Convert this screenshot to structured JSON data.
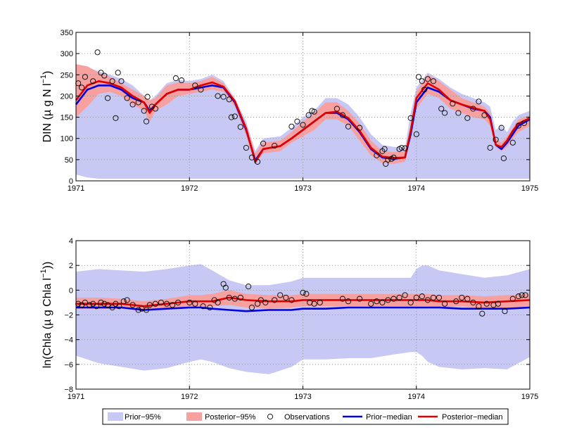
{
  "colors": {
    "prior_band": "#c8c8f5",
    "posterior_band": "#f6a0a0",
    "prior_median": "#0000e0",
    "posterior_median": "#e00000",
    "grid": "#888888"
  },
  "legend": [
    {
      "key": "prior95",
      "label": "Prior−95%"
    },
    {
      "key": "post95",
      "label": "Posterior−95%"
    },
    {
      "key": "obs",
      "label": "Observations"
    },
    {
      "key": "priormed",
      "label": "Prior−median"
    },
    {
      "key": "postmed",
      "label": "Posterior−median"
    }
  ],
  "chart_data": [
    {
      "type": "area",
      "id": "din",
      "ylabel_main": "DIN (µ g N l",
      "ylabel_sup": "−1",
      "ylabel_end": ")",
      "xlim": [
        1971,
        1975
      ],
      "ylim": [
        0,
        350
      ],
      "xticks": [
        1971,
        1972,
        1973,
        1974,
        1975
      ],
      "xtick_labels": [
        "1971",
        "1972",
        "1973",
        "1974",
        "1975"
      ],
      "yticks": [
        0,
        50,
        100,
        150,
        200,
        250,
        300,
        350
      ],
      "ytick_labels": [
        "0",
        "50",
        "100",
        "150",
        "200",
        "250",
        "300",
        "350"
      ],
      "t": [
        1971.0,
        1971.1,
        1971.2,
        1971.3,
        1971.4,
        1971.5,
        1971.6,
        1971.65,
        1971.7,
        1971.8,
        1971.9,
        1972.0,
        1972.1,
        1972.2,
        1972.3,
        1972.4,
        1972.5,
        1972.58,
        1972.65,
        1972.8,
        1972.9,
        1973.0,
        1973.1,
        1973.2,
        1973.3,
        1973.4,
        1973.5,
        1973.6,
        1973.7,
        1973.8,
        1973.9,
        1973.95,
        1974.0,
        1974.1,
        1974.2,
        1974.3,
        1974.4,
        1974.5,
        1974.6,
        1974.65,
        1974.7,
        1974.75,
        1974.8,
        1974.85,
        1974.9,
        1975.0
      ],
      "prior_low": [
        15,
        8,
        5,
        5,
        5,
        5,
        5,
        5,
        5,
        5,
        5,
        5,
        5,
        5,
        5,
        5,
        5,
        5,
        5,
        5,
        5,
        5,
        5,
        5,
        5,
        5,
        5,
        5,
        5,
        5,
        5,
        5,
        5,
        5,
        5,
        5,
        5,
        5,
        5,
        5,
        5,
        5,
        5,
        5,
        5,
        5
      ],
      "prior_high": [
        270,
        268,
        258,
        250,
        240,
        225,
        200,
        190,
        200,
        230,
        238,
        235,
        240,
        250,
        235,
        195,
        140,
        70,
        100,
        105,
        125,
        150,
        165,
        195,
        195,
        180,
        150,
        110,
        85,
        80,
        78,
        160,
        220,
        255,
        240,
        220,
        205,
        195,
        185,
        175,
        120,
        130,
        115,
        140,
        155,
        165
      ],
      "post_low": [
        150,
        175,
        205,
        210,
        200,
        180,
        165,
        140,
        165,
        180,
        200,
        205,
        210,
        215,
        210,
        175,
        105,
        40,
        65,
        70,
        90,
        105,
        120,
        145,
        145,
        130,
        95,
        60,
        42,
        40,
        45,
        110,
        170,
        205,
        195,
        170,
        160,
        150,
        145,
        130,
        80,
        70,
        80,
        100,
        115,
        130
      ],
      "post_high": [
        275,
        270,
        255,
        245,
        230,
        215,
        200,
        190,
        195,
        225,
        232,
        230,
        235,
        245,
        230,
        190,
        130,
        65,
        90,
        95,
        115,
        140,
        160,
        185,
        185,
        165,
        135,
        95,
        70,
        68,
        70,
        130,
        210,
        250,
        235,
        215,
        195,
        185,
        175,
        160,
        100,
        90,
        105,
        125,
        145,
        155
      ],
      "prior_median": [
        180,
        215,
        225,
        225,
        215,
        195,
        185,
        165,
        180,
        205,
        215,
        215,
        220,
        225,
        220,
        185,
        120,
        48,
        75,
        82,
        100,
        120,
        140,
        160,
        160,
        145,
        115,
        75,
        55,
        52,
        55,
        110,
        185,
        220,
        210,
        190,
        180,
        170,
        165,
        150,
        85,
        75,
        90,
        110,
        130,
        145
      ],
      "post_median": [
        190,
        225,
        235,
        230,
        220,
        200,
        185,
        160,
        180,
        205,
        215,
        215,
        225,
        232,
        222,
        188,
        123,
        44,
        75,
        82,
        100,
        120,
        140,
        160,
        163,
        148,
        118,
        78,
        57,
        54,
        55,
        118,
        195,
        230,
        215,
        190,
        180,
        172,
        165,
        145,
        85,
        80,
        95,
        118,
        135,
        148
      ],
      "observations": [
        [
          1971.02,
          230
        ],
        [
          1971.05,
          220
        ],
        [
          1971.08,
          245
        ],
        [
          1971.15,
          235
        ],
        [
          1971.19,
          303
        ],
        [
          1971.22,
          255
        ],
        [
          1971.25,
          248
        ],
        [
          1971.28,
          195
        ],
        [
          1971.32,
          235
        ],
        [
          1971.35,
          148
        ],
        [
          1971.37,
          255
        ],
        [
          1971.4,
          235
        ],
        [
          1971.45,
          195
        ],
        [
          1971.5,
          180
        ],
        [
          1971.55,
          185
        ],
        [
          1971.6,
          165
        ],
        [
          1971.62,
          140
        ],
        [
          1971.63,
          198
        ],
        [
          1971.67,
          175
        ],
        [
          1971.7,
          170
        ],
        [
          1971.88,
          242
        ],
        [
          1971.93,
          237
        ],
        [
          1972.05,
          225
        ],
        [
          1972.1,
          215
        ],
        [
          1972.25,
          200
        ],
        [
          1972.3,
          198
        ],
        [
          1972.35,
          192
        ],
        [
          1972.37,
          150
        ],
        [
          1972.4,
          152
        ],
        [
          1972.45,
          127
        ],
        [
          1972.5,
          78
        ],
        [
          1972.55,
          55
        ],
        [
          1972.6,
          45
        ],
        [
          1972.65,
          88
        ],
        [
          1972.75,
          83
        ],
        [
          1972.9,
          128
        ],
        [
          1972.95,
          140
        ],
        [
          1973.0,
          132
        ],
        [
          1973.05,
          155
        ],
        [
          1973.08,
          165
        ],
        [
          1973.1,
          163
        ],
        [
          1973.3,
          170
        ],
        [
          1973.35,
          155
        ],
        [
          1973.4,
          128
        ],
        [
          1973.5,
          125
        ],
        [
          1973.65,
          60
        ],
        [
          1973.7,
          70
        ],
        [
          1973.72,
          75
        ],
        [
          1973.73,
          40
        ],
        [
          1973.75,
          50
        ],
        [
          1973.78,
          52
        ],
        [
          1973.8,
          55
        ],
        [
          1973.85,
          75
        ],
        [
          1973.87,
          78
        ],
        [
          1973.9,
          77
        ],
        [
          1973.95,
          148
        ],
        [
          1974.0,
          110
        ],
        [
          1974.02,
          245
        ],
        [
          1974.05,
          235
        ],
        [
          1974.07,
          215
        ],
        [
          1974.1,
          240
        ],
        [
          1974.15,
          235
        ],
        [
          1974.22,
          170
        ],
        [
          1974.25,
          160
        ],
        [
          1974.32,
          182
        ],
        [
          1974.37,
          160
        ],
        [
          1974.45,
          148
        ],
        [
          1974.5,
          170
        ],
        [
          1974.55,
          187
        ],
        [
          1974.6,
          155
        ],
        [
          1974.65,
          78
        ],
        [
          1974.7,
          97
        ],
        [
          1974.75,
          125
        ],
        [
          1974.77,
          53
        ],
        [
          1974.85,
          90
        ],
        [
          1974.9,
          130
        ],
        [
          1974.95,
          136
        ]
      ]
    },
    {
      "type": "area",
      "id": "chla",
      "ylabel_main": "ln(Chla (µ g Chla l",
      "ylabel_sup": "−1",
      "ylabel_end": "))",
      "xlim": [
        1971,
        1975
      ],
      "ylim": [
        -8,
        4
      ],
      "xticks": [
        1971,
        1972,
        1973,
        1974,
        1975
      ],
      "xtick_labels": [
        "1971",
        "1972",
        "1973",
        "1974",
        "1975"
      ],
      "yticks": [
        -8,
        -6,
        -4,
        -2,
        0,
        2,
        4
      ],
      "ytick_labels": [
        "−8",
        "−6",
        "−4",
        "−2",
        "0",
        "2",
        "4"
      ],
      "t": [
        1971.0,
        1971.2,
        1971.4,
        1971.6,
        1971.8,
        1972.0,
        1972.1,
        1972.2,
        1972.35,
        1972.5,
        1972.7,
        1972.9,
        1973.0,
        1973.2,
        1973.4,
        1973.6,
        1973.8,
        1973.95,
        1974.0,
        1974.05,
        1974.1,
        1974.2,
        1974.4,
        1974.6,
        1974.8,
        1975.0
      ],
      "prior_low": [
        -5.3,
        -5.9,
        -6.2,
        -6.5,
        -6.3,
        -5.8,
        -5.6,
        -5.8,
        -6.3,
        -6.6,
        -6.8,
        -6.2,
        -5.6,
        -5.6,
        -5.5,
        -5.5,
        -5.2,
        -5.0,
        -5.0,
        -5.3,
        -5.8,
        -6.2,
        -6.4,
        -6.3,
        -6.4,
        -5.4
      ],
      "prior_high": [
        1.5,
        1.7,
        1.6,
        1.5,
        1.7,
        2.0,
        2.1,
        1.6,
        0.8,
        0.4,
        0.4,
        0.7,
        1.0,
        1.0,
        1.0,
        1.0,
        1.0,
        1.0,
        1.7,
        2.0,
        2.0,
        1.6,
        1.3,
        1.0,
        1.2,
        1.7
      ],
      "post_low": [
        -1.5,
        -1.5,
        -1.5,
        -1.7,
        -1.5,
        -1.4,
        -1.4,
        -1.3,
        -1.2,
        -1.4,
        -1.5,
        -1.4,
        -1.3,
        -1.3,
        -1.3,
        -1.3,
        -1.3,
        -1.3,
        -1.3,
        -1.3,
        -1.3,
        -1.4,
        -1.3,
        -1.5,
        -1.5,
        -1.4
      ],
      "post_high": [
        -0.6,
        -0.6,
        -0.7,
        -0.9,
        -0.7,
        -0.4,
        -0.4,
        -0.3,
        0.0,
        -0.3,
        -0.4,
        -0.4,
        -0.3,
        -0.3,
        -0.3,
        -0.3,
        -0.3,
        -0.3,
        -0.3,
        -0.3,
        -0.3,
        -0.4,
        -0.4,
        -0.5,
        -0.4,
        -0.3
      ],
      "prior_median": [
        -1.4,
        -1.4,
        -1.4,
        -1.6,
        -1.5,
        -1.4,
        -1.4,
        -1.5,
        -1.6,
        -1.7,
        -1.6,
        -1.6,
        -1.5,
        -1.5,
        -1.4,
        -1.4,
        -1.4,
        -1.4,
        -1.4,
        -1.4,
        -1.4,
        -1.4,
        -1.5,
        -1.5,
        -1.5,
        -1.4
      ],
      "post_median": [
        -1.1,
        -1.1,
        -1.1,
        -1.3,
        -1.1,
        -0.9,
        -0.9,
        -0.9,
        -0.6,
        -0.8,
        -0.9,
        -0.9,
        -0.8,
        -0.8,
        -0.8,
        -0.8,
        -0.8,
        -0.8,
        -0.8,
        -0.8,
        -0.8,
        -0.9,
        -0.9,
        -1.0,
        -0.9,
        -0.8
      ],
      "observations": [
        [
          1971.02,
          -1.1
        ],
        [
          1971.05,
          -1.2
        ],
        [
          1971.08,
          -1.0
        ],
        [
          1971.12,
          -1.2
        ],
        [
          1971.15,
          -1.1
        ],
        [
          1971.18,
          -1.3
        ],
        [
          1971.22,
          -1.0
        ],
        [
          1971.25,
          -1.1
        ],
        [
          1971.28,
          -1.2
        ],
        [
          1971.32,
          -1.4
        ],
        [
          1971.35,
          -1.1
        ],
        [
          1971.38,
          -1.3
        ],
        [
          1971.42,
          -0.9
        ],
        [
          1971.45,
          -0.8
        ],
        [
          1971.5,
          -1.2
        ],
        [
          1971.55,
          -1.6
        ],
        [
          1971.58,
          -1.5
        ],
        [
          1971.62,
          -1.6
        ],
        [
          1971.65,
          -1.2
        ],
        [
          1971.7,
          -1.1
        ],
        [
          1971.75,
          -1.0
        ],
        [
          1971.8,
          -1.1
        ],
        [
          1971.85,
          -1.2
        ],
        [
          1971.9,
          -1.0
        ],
        [
          1972.0,
          -1.0
        ],
        [
          1972.05,
          -1.1
        ],
        [
          1972.12,
          -1.3
        ],
        [
          1972.18,
          -1.4
        ],
        [
          1972.22,
          -0.8
        ],
        [
          1972.25,
          -1.0
        ],
        [
          1972.3,
          0.5
        ],
        [
          1972.32,
          0.2
        ],
        [
          1972.35,
          -0.6
        ],
        [
          1972.4,
          -0.7
        ],
        [
          1972.45,
          -0.6
        ],
        [
          1972.52,
          0.3
        ],
        [
          1972.55,
          -1.4
        ],
        [
          1972.6,
          -1.1
        ],
        [
          1972.63,
          -0.8
        ],
        [
          1972.67,
          -1.0
        ],
        [
          1972.75,
          -0.8
        ],
        [
          1972.8,
          -0.4
        ],
        [
          1972.85,
          -0.6
        ],
        [
          1972.9,
          -0.8
        ],
        [
          1973.0,
          -0.2
        ],
        [
          1973.03,
          -0.3
        ],
        [
          1973.06,
          -1.0
        ],
        [
          1973.1,
          -1.1
        ],
        [
          1973.15,
          -1.0
        ],
        [
          1973.35,
          -0.7
        ],
        [
          1973.4,
          -0.9
        ],
        [
          1973.5,
          -0.7
        ],
        [
          1973.6,
          -1.1
        ],
        [
          1973.65,
          -0.9
        ],
        [
          1973.7,
          -1.0
        ],
        [
          1973.75,
          -0.8
        ],
        [
          1973.8,
          -0.7
        ],
        [
          1973.85,
          -0.6
        ],
        [
          1973.9,
          -0.4
        ],
        [
          1973.95,
          -1.0
        ],
        [
          1974.0,
          -0.6
        ],
        [
          1974.05,
          -0.5
        ],
        [
          1974.1,
          -0.8
        ],
        [
          1974.15,
          -0.6
        ],
        [
          1974.2,
          -0.6
        ],
        [
          1974.25,
          -1.1
        ],
        [
          1974.35,
          -0.9
        ],
        [
          1974.4,
          -0.6
        ],
        [
          1974.45,
          -0.7
        ],
        [
          1974.5,
          -1.0
        ],
        [
          1974.55,
          -1.3
        ],
        [
          1974.58,
          -1.9
        ],
        [
          1974.62,
          -1.1
        ],
        [
          1974.68,
          -1.2
        ],
        [
          1974.72,
          -1.1
        ],
        [
          1974.78,
          -1.7
        ],
        [
          1974.85,
          -0.7
        ],
        [
          1974.9,
          -0.5
        ],
        [
          1974.93,
          -0.4
        ],
        [
          1974.96,
          -0.4
        ]
      ]
    }
  ]
}
